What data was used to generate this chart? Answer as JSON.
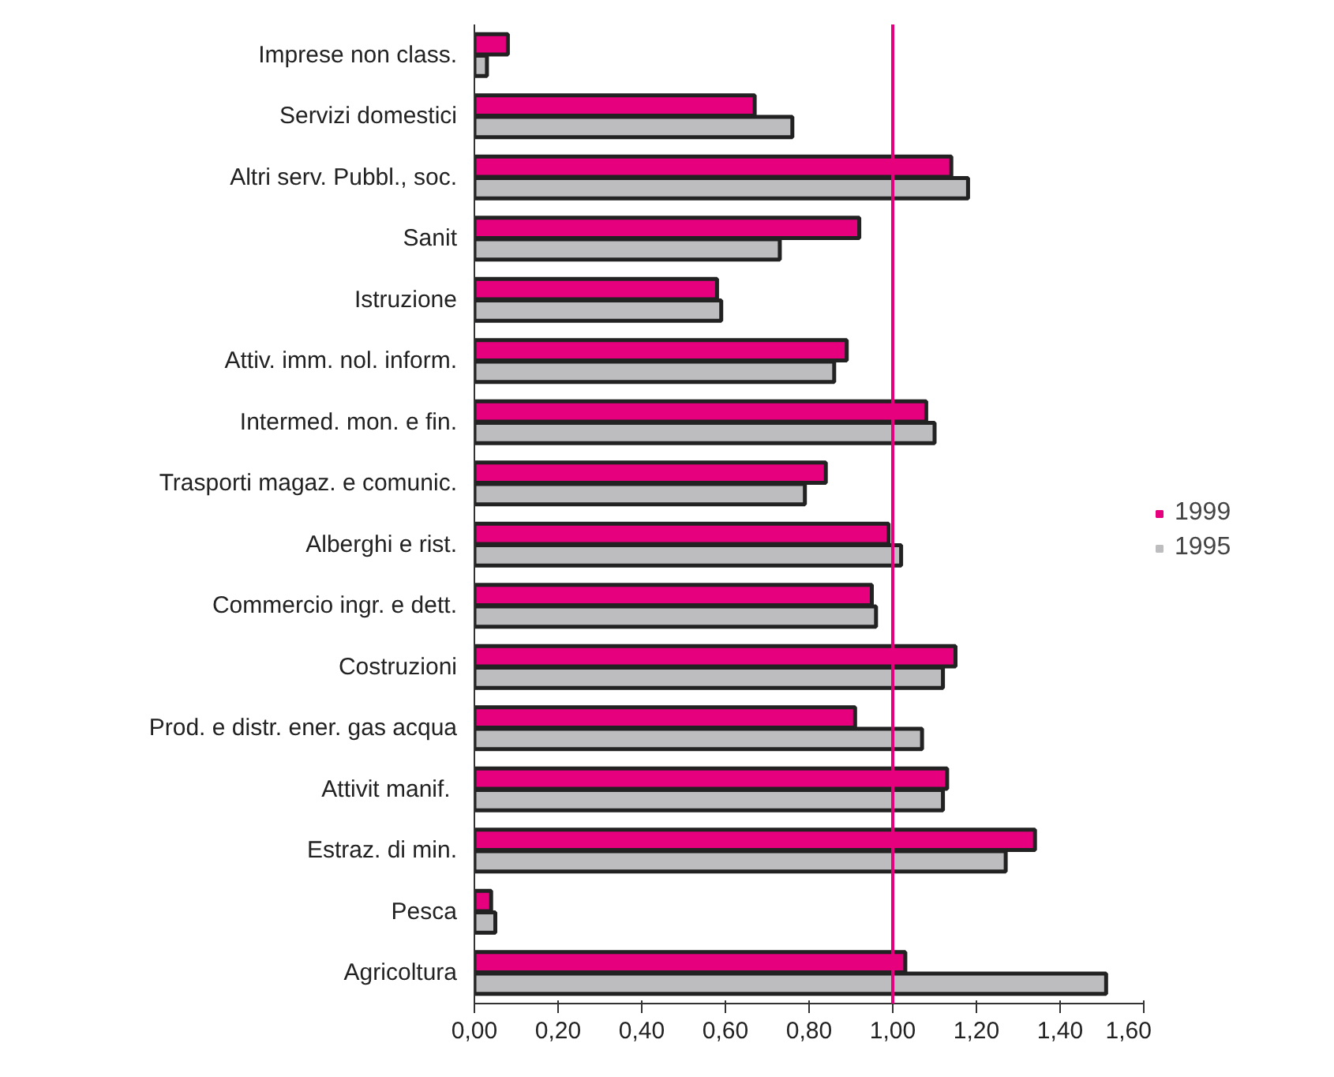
{
  "chart_data": {
    "type": "bar",
    "orientation": "horizontal",
    "categories": [
      "Imprese non class.",
      "Servizi domestici",
      "Altri serv. Pubbl., soc.",
      "Sanit",
      "Istruzione",
      "Attiv. imm. nol. inform.",
      "Intermed. mon. e fin.",
      "Trasporti magaz. e comunic.",
      "Alberghi e rist.",
      "Commercio ingr. e dett.",
      "Costruzioni",
      "Prod. e distr. ener. gas acqua",
      "Attivit  manif.",
      "Estraz. di min.",
      "Pesca",
      "Agricoltura"
    ],
    "series": [
      {
        "name": "1999",
        "color": "#e6007e",
        "values": [
          0.08,
          0.67,
          1.14,
          0.92,
          0.58,
          0.89,
          1.08,
          0.84,
          0.99,
          0.95,
          1.15,
          0.91,
          1.13,
          1.34,
          0.04,
          1.03
        ]
      },
      {
        "name": "1995",
        "color": "#bdbdc0",
        "values": [
          0.03,
          0.76,
          1.18,
          0.73,
          0.59,
          0.86,
          1.1,
          0.79,
          1.02,
          0.96,
          1.12,
          1.07,
          1.12,
          1.27,
          0.05,
          1.51
        ]
      }
    ],
    "xlim": [
      0,
      1.6
    ],
    "xticks": [
      {
        "value": 0,
        "label": "0,00"
      },
      {
        "value": 0.2,
        "label": "0,20"
      },
      {
        "value": 0.4,
        "label": "0,40"
      },
      {
        "value": 0.6,
        "label": "0,60"
      },
      {
        "value": 0.8,
        "label": "0,80"
      },
      {
        "value": 1.0,
        "label": "1,00"
      },
      {
        "value": 1.2,
        "label": "1,20"
      },
      {
        "value": 1.4,
        "label": "1,40"
      },
      {
        "value": 1.6,
        "label": "1,60"
      }
    ],
    "ref_lines": [
      {
        "axis": "x",
        "value": 1.0,
        "color": "#e6007e"
      }
    ],
    "grid": false,
    "legend": "right"
  }
}
